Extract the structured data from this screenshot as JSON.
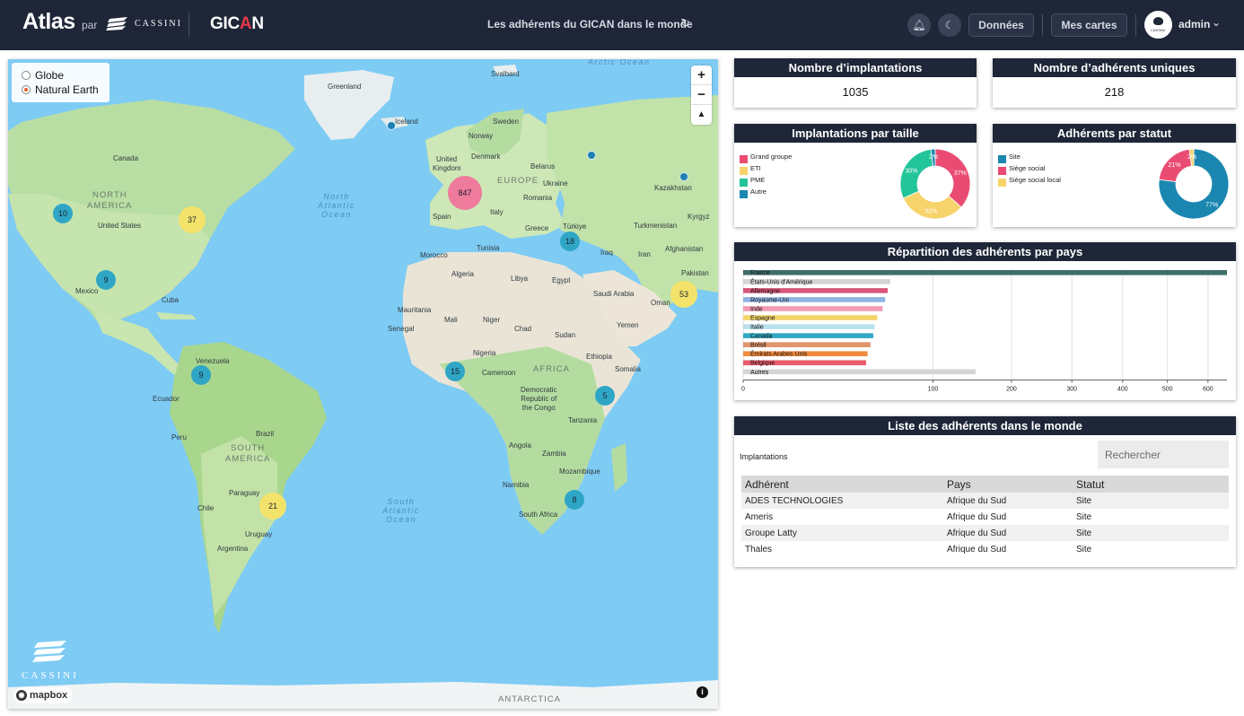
{
  "header": {
    "brand": "Atlas",
    "par": "par",
    "cassini": "CASSINI",
    "gican_pre": "GIC",
    "gican_a": "A",
    "gican_post": "N",
    "title": "Les adhérents du GICAN dans le monde",
    "donnees": "Données",
    "mes_cartes": "Mes cartes",
    "user": "admin",
    "avatar_text": "CASSINI"
  },
  "map": {
    "projections": [
      {
        "label": "Globe",
        "selected": false
      },
      {
        "label": "Natural Earth",
        "selected": true
      }
    ],
    "labels": {
      "greenland": "Greenland",
      "iceland": "Iceland",
      "canada": "Canada",
      "north_america": "NORTH",
      "north_america2": "AMERICA",
      "united_states": "United States",
      "mexico": "Mexico",
      "cuba": "Cuba",
      "venezuela": "Venezuela",
      "ecuador": "Ecuador",
      "peru": "Peru",
      "brazil": "Brazil",
      "south_america": "SOUTH",
      "south_america2": "AMERICA",
      "paraguay": "Paraguay",
      "chile": "Chile",
      "uruguay": "Uruguay",
      "argentina": "Argentina",
      "svalbard": "Svalbard",
      "sweden": "Sweden",
      "norway": "Norway",
      "denmark": "Denmark",
      "uk": "United",
      "uk2": "Kingdom",
      "belarus": "Belarus",
      "europe": "EUROPE",
      "ukraine": "Ukraine",
      "romania": "Romania",
      "spain": "Spain",
      "italy": "Italy",
      "greece": "Greece",
      "turkiye": "Türkiye",
      "kazakhstan": "Kazakhstan",
      "kyrgyz": "Kyrgyz",
      "turkmenistan": "Turkmenistan",
      "afghanistan": "Afghanistan",
      "pakistan": "Pakistan",
      "iran": "Iran",
      "iraq": "Iraq",
      "tunisia": "Tunisia",
      "morocco": "Morocco",
      "algeria": "Algeria",
      "libya": "Libya",
      "egypt": "Egypt",
      "saudi": "Saudi Arabia",
      "oman": "Oman",
      "yemen": "Yemen",
      "mauritania": "Mauritania",
      "mali": "Mali",
      "niger": "Niger",
      "chad": "Chad",
      "sudan": "Sudan",
      "senegal": "Senegal",
      "nigeria": "Nigeria",
      "ethiopia": "Ethiopia",
      "somalia": "Somalia",
      "cameroon": "Cameroon",
      "africa": "AFRICA",
      "drc1": "Democratic",
      "drc2": "Republic of",
      "drc3": "the Congo",
      "tanzania": "Tanzania",
      "angola": "Angola",
      "zambia": "Zambia",
      "mozambique": "Mozambique",
      "namibia": "Namibia",
      "south_africa": "South Africa",
      "antarctica": "ANTARCTICA",
      "arctic": "Arctic Ocean",
      "north_atlantic1": "North",
      "north_atlantic2": "Atlantic",
      "north_atlantic3": "Ocean",
      "south_atlantic1": "South",
      "south_atlantic2": "Atlantic",
      "south_atlantic3": "Ocean"
    },
    "clusters": [
      {
        "id": "europe",
        "count": "847",
        "color": "#ee7a9c"
      },
      {
        "id": "us-east",
        "count": "37",
        "color": "#f3e36b"
      },
      {
        "id": "us-west",
        "count": "10",
        "color": "#2fa6c6"
      },
      {
        "id": "mexico",
        "count": "9",
        "color": "#2fa6c6"
      },
      {
        "id": "turkey",
        "count": "18",
        "color": "#2fa6c6"
      },
      {
        "id": "gulf",
        "count": "53",
        "color": "#f3e36b"
      },
      {
        "id": "venezuela",
        "count": "9",
        "color": "#2fa6c6"
      },
      {
        "id": "westafrica",
        "count": "15",
        "color": "#2fa6c6"
      },
      {
        "id": "eastafrica",
        "count": "5",
        "color": "#2fa6c6"
      },
      {
        "id": "southamerica",
        "count": "21",
        "color": "#f3e36b"
      },
      {
        "id": "southafrica",
        "count": "8",
        "color": "#2fa6c6"
      }
    ],
    "mapbox": "mapbox",
    "watermark": "CASSINI"
  },
  "kpis": {
    "implantations_title": "Nombre d’implantations",
    "implantations_value": "1035",
    "adherents_title": "Nombre d’adhérents uniques",
    "adherents_value": "218"
  },
  "colors": {
    "pink": "#ea4b72",
    "yellow": "#f7d36b",
    "teal": "#22c59a",
    "blue": "#1b87b0",
    "header": "#1e2638"
  },
  "chart_data": [
    {
      "type": "pie",
      "title": "Implantations par taille",
      "labels": [
        "Grand groupe",
        "ETI",
        "PME",
        "Autre"
      ],
      "values": [
        37,
        32,
        30,
        2
      ],
      "percent_labels": [
        "37%",
        "32%",
        "30%",
        "2%"
      ],
      "colors": [
        "#ea4b72",
        "#f7d36b",
        "#22c59a",
        "#1b87b0"
      ]
    },
    {
      "type": "pie",
      "title": "Adhérents par statut",
      "labels": [
        "Site",
        "Siège social",
        "Siège social local"
      ],
      "values": [
        77,
        21,
        2
      ],
      "percent_labels": [
        "77%",
        "21%",
        "2%"
      ],
      "colors": [
        "#1b87b0",
        "#ea4b72",
        "#f7d36b"
      ]
    },
    {
      "type": "bar",
      "orientation": "horizontal",
      "title": "Répartition des adhérents par pays",
      "categories": [
        "France",
        "États-Unis d'Amérique",
        "Allemagne",
        "Royaume-Uni",
        "Inde",
        "Espagne",
        "Italie",
        "Canada",
        "Brésil",
        "Émirats Arabes Unis",
        "Belgique",
        "Autres"
      ],
      "values": [
        650,
        60,
        58,
        56,
        54,
        50,
        48,
        47,
        45,
        43,
        42,
        150
      ],
      "colors": [
        "#3e6e6a",
        "#d4d4d4",
        "#d9577b",
        "#8fb4e3",
        "#f29bb0",
        "#f3d46a",
        "#b9e0ec",
        "#33a9c4",
        "#e0956a",
        "#f08a3e",
        "#ea5c6c",
        "#d4d4d4"
      ],
      "x_ticks": [
        "0",
        "100",
        "200",
        "300",
        "400",
        "500",
        "600"
      ],
      "x_tick_values": [
        0,
        100,
        200,
        300,
        400,
        500,
        600
      ],
      "x_scale": "sqrt",
      "xlim": [
        0,
        650
      ]
    }
  ],
  "list": {
    "title": "Liste des adhérents dans le monde",
    "sub": "Implantations",
    "search_placeholder": "Rechercher",
    "headers": [
      "Adhérent",
      "Pays",
      "Statut"
    ],
    "rows": [
      [
        "ADES TECHNOLOGIES",
        "Afrique du Sud",
        "Site"
      ],
      [
        "Ameris",
        "Afrique du Sud",
        "Site"
      ],
      [
        "Groupe Latty",
        "Afrique du Sud",
        "Site"
      ],
      [
        "Thales",
        "Afrique du Sud",
        "Site"
      ]
    ]
  }
}
